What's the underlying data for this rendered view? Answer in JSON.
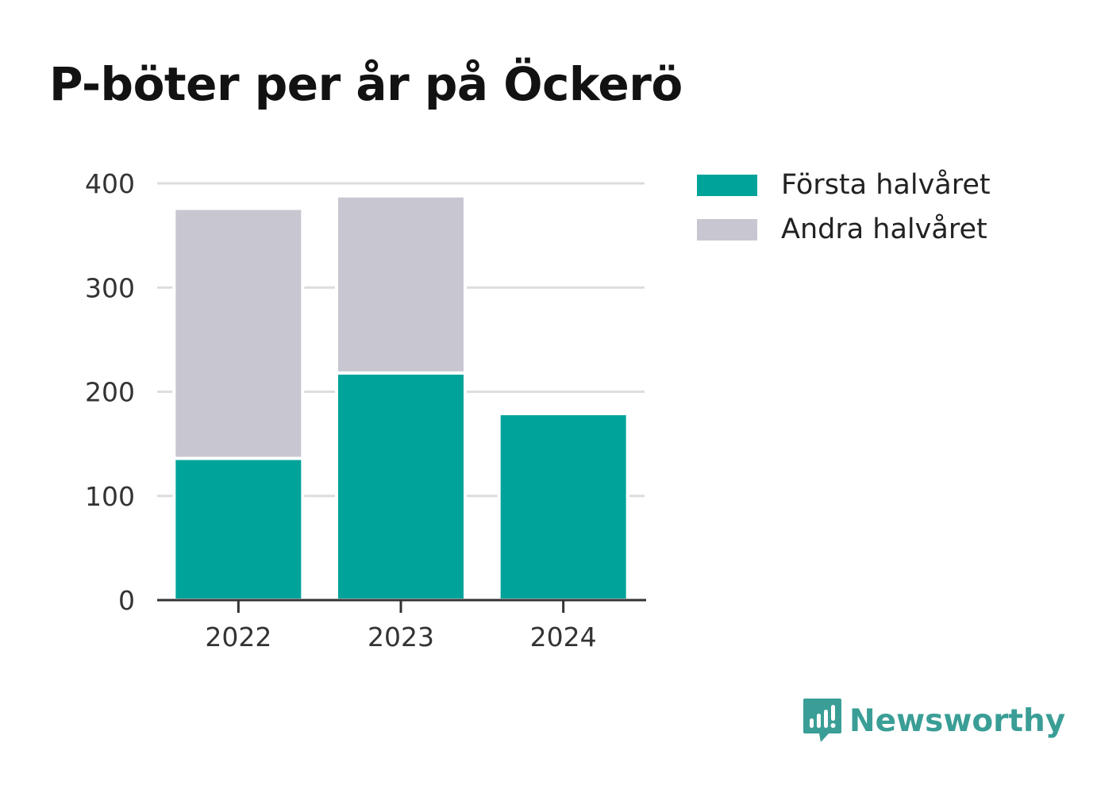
{
  "title": "P-böter per år på Öckerö",
  "brand": {
    "name": "Newsworthy",
    "icon": "newsworthy-logo-icon",
    "color": "#3a9e96"
  },
  "chart_data": {
    "type": "bar",
    "stacked": true,
    "title": "P-böter per år på Öckerö",
    "categories": [
      "2022",
      "2023",
      "2024"
    ],
    "series": [
      {
        "name": "Första halvåret",
        "color": "#00a39a",
        "values": [
          136,
          218,
          179
        ]
      },
      {
        "name": "Andra halvåret",
        "color": "#c8c7d1",
        "values": [
          240,
          170,
          0
        ]
      }
    ],
    "ylim": [
      0,
      400
    ],
    "yticks": [
      "0",
      "100",
      "200",
      "300",
      "400"
    ],
    "grid": true,
    "legend": "top-right",
    "xlabel": "",
    "ylabel": ""
  },
  "legend": [
    {
      "label": "Första halvåret",
      "color": "#00a39a"
    },
    {
      "label": "Andra halvåret",
      "color": "#c8c7d1"
    }
  ]
}
